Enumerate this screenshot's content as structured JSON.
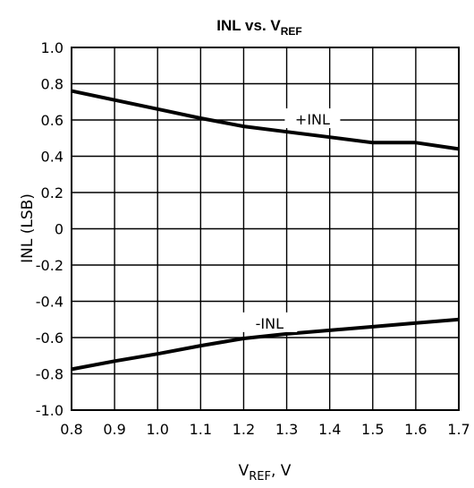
{
  "chart_data": {
    "type": "line",
    "title": {
      "main": "INL vs. V",
      "sub": "REF"
    },
    "xlabel": {
      "main": "V",
      "sub": "REF",
      "rest": ", V"
    },
    "ylabel": "INL (LSB)",
    "xlim": [
      0.8,
      1.7
    ],
    "ylim": [
      -1.0,
      1.0
    ],
    "xticks": [
      "0.8",
      "0.9",
      "1.0",
      "1.1",
      "1.2",
      "1.3",
      "1.4",
      "1.5",
      "1.6",
      "1.7"
    ],
    "yticks": [
      "1.0",
      "0.8",
      "0.6",
      "0.4",
      "0.2",
      "0",
      "-0.2",
      "-0.4",
      "-0.6",
      "-0.8",
      "-1.0"
    ],
    "grid": true,
    "series": [
      {
        "name": "+INL",
        "x": [
          0.8,
          0.9,
          1.0,
          1.1,
          1.2,
          1.3,
          1.4,
          1.5,
          1.6,
          1.7
        ],
        "y": [
          0.76,
          0.71,
          0.66,
          0.61,
          0.565,
          0.535,
          0.505,
          0.475,
          0.475,
          0.44
        ]
      },
      {
        "name": "-INL",
        "x": [
          0.8,
          0.9,
          1.0,
          1.1,
          1.2,
          1.3,
          1.4,
          1.5,
          1.6,
          1.7
        ],
        "y": [
          -0.775,
          -0.73,
          -0.69,
          -0.645,
          -0.605,
          -0.58,
          -0.56,
          -0.54,
          -0.52,
          -0.5
        ]
      }
    ],
    "colors": {
      "line": "#000000",
      "grid": "#000000"
    }
  }
}
